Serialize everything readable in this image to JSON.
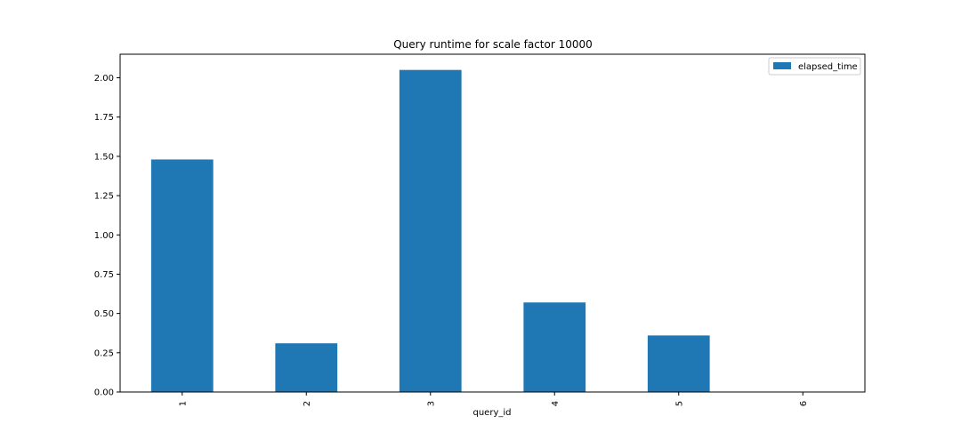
{
  "chart_data": {
    "type": "bar",
    "title": "Query runtime for scale factor 10000",
    "xlabel": "query_id",
    "ylabel": "",
    "categories": [
      "1",
      "2",
      "3",
      "4",
      "5",
      "6"
    ],
    "series": [
      {
        "name": "elapsed_time",
        "values": [
          1.48,
          0.31,
          2.05,
          0.57,
          0.36,
          0.0
        ],
        "color": "#1f77b4"
      }
    ],
    "ylim": [
      0,
      2.15
    ],
    "yticks": [
      "0.00",
      "0.25",
      "0.50",
      "0.75",
      "1.00",
      "1.25",
      "1.50",
      "1.75",
      "2.00"
    ],
    "grid": false,
    "legend_position": "top-right"
  }
}
